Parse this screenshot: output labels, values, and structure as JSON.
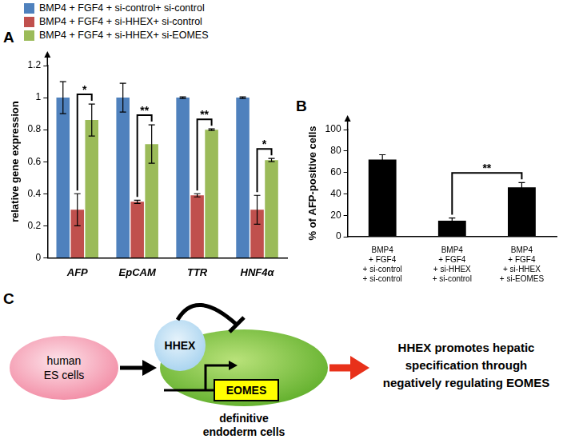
{
  "chart_data": [
    {
      "type": "bar",
      "title": "A",
      "categories": [
        "AFP",
        "EpCAM",
        "TTR",
        "HNF4α"
      ],
      "series": [
        {
          "name": "BMP4 + FGF4 + si-control+ si-control",
          "color": "#4f81bd",
          "values": [
            1,
            1,
            1,
            1
          ],
          "errors": [
            0.1,
            0.09,
            0.005,
            0.005
          ]
        },
        {
          "name": "BMP4 + FGF4 + si-HHEX+ si-control",
          "color": "#c0504d",
          "values": [
            0.3,
            0.35,
            0.39,
            0.3
          ],
          "errors": [
            0.1,
            0.01,
            0.01,
            0.09
          ]
        },
        {
          "name": "BMP4 + FGF4 + si-HHEX+ si-EOMES",
          "color": "#9bbb59",
          "values": [
            0.86,
            0.71,
            0.8,
            0.61
          ],
          "errors": [
            0.1,
            0.12,
            0.005,
            0.01
          ]
        }
      ],
      "ylabel": "relative gene expression",
      "ylim": [
        0,
        1.2
      ],
      "yticks": [
        0,
        0.2,
        0.4,
        0.6,
        0.8,
        1,
        1.2
      ],
      "grid": false,
      "legend": "top-left",
      "annotations": [
        {
          "category": "AFP",
          "between": [
            "BMP4 + FGF4 + si-HHEX+ si-control",
            "BMP4 + FGF4 + si-HHEX+ si-EOMES"
          ],
          "text": "*"
        },
        {
          "category": "EpCAM",
          "between": [
            "BMP4 + FGF4 + si-HHEX+ si-control",
            "BMP4 + FGF4 + si-HHEX+ si-EOMES"
          ],
          "text": "**"
        },
        {
          "category": "TTR",
          "between": [
            "BMP4 + FGF4 + si-HHEX+ si-control",
            "BMP4 + FGF4 + si-HHEX+ si-EOMES"
          ],
          "text": "**"
        },
        {
          "category": "HNF4α",
          "between": [
            "BMP4 + FGF4 + si-HHEX+ si-control",
            "BMP4 + FGF4 + si-HHEX+ si-EOMES"
          ],
          "text": "*"
        }
      ]
    },
    {
      "type": "bar",
      "title": "B",
      "categories": [
        "BMP4\n+ FGF4\n+ si-control\n+ si-control",
        "BMP4\n+ FGF4\n+ si-HHEX\n+ si-control",
        "BMP4\n+ FGF4\n+ si-HHEX\n+ si-EOMES"
      ],
      "values": [
        72,
        15,
        46
      ],
      "errors": [
        4.5,
        2.5,
        4.5
      ],
      "color": "#000000",
      "ylabel": "% of AFP-positive cells",
      "ylim": [
        0,
        100
      ],
      "yticks": [
        0,
        20,
        40,
        60,
        80,
        100
      ],
      "grid": false,
      "annotations": [
        {
          "between": [
            "BMP4\n+ FGF4\n+ si-HHEX\n+ si-control",
            "BMP4\n+ FGF4\n+ si-HHEX\n+ si-EOMES"
          ],
          "text": "**"
        }
      ]
    }
  ],
  "diagram": {
    "title": "C",
    "start": "human\nES cells",
    "factor": "HHEX",
    "target": "EOMES",
    "cell": "definitive\nendoderm cells",
    "conclusion": "HHEX promotes hepatic\nspecification through\nnegatively regulating EOMES"
  }
}
